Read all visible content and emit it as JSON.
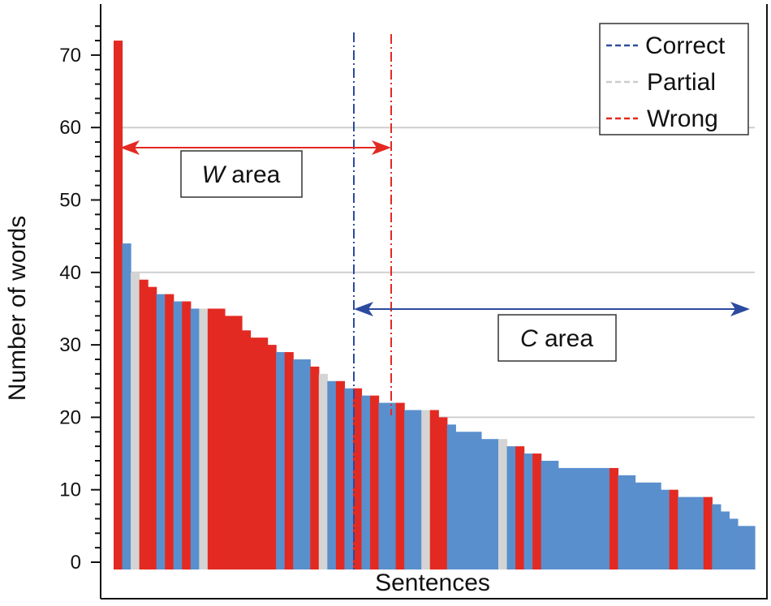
{
  "chart_data": {
    "type": "bar",
    "xlabel": "Sentences",
    "ylabel": "Number of words",
    "ylim": [
      0,
      75
    ],
    "yticks": [
      "0",
      "10",
      "20",
      "30",
      "40",
      "50",
      "60",
      "70"
    ],
    "grid_y": [
      20,
      40,
      60
    ],
    "legend": {
      "placement": "top-right",
      "items": [
        {
          "label": "Correct",
          "color": "#2f4f9a"
        },
        {
          "label": "Partial",
          "color": "#cccccc"
        },
        {
          "label": "Wrong",
          "color": "#e02a20"
        }
      ]
    },
    "colors": {
      "correct": "#5a8fcd",
      "partial": "#d4d4d4",
      "wrong": "#e32a22"
    },
    "annotations": {
      "w_area": {
        "italic": "W",
        "text": " area",
        "color": "#e32a22"
      },
      "c_area": {
        "italic": "C",
        "text": " area",
        "color": "#2c4a9e"
      }
    },
    "sentences": [
      {
        "words": 72,
        "class": "wrong"
      },
      {
        "words": 44,
        "class": "correct"
      },
      {
        "words": 40,
        "class": "partial"
      },
      {
        "words": 39,
        "class": "wrong"
      },
      {
        "words": 38,
        "class": "wrong"
      },
      {
        "words": 37,
        "class": "correct"
      },
      {
        "words": 37,
        "class": "wrong"
      },
      {
        "words": 36,
        "class": "correct"
      },
      {
        "words": 36,
        "class": "wrong"
      },
      {
        "words": 35,
        "class": "correct"
      },
      {
        "words": 35,
        "class": "partial"
      },
      {
        "words": 35,
        "class": "wrong"
      },
      {
        "words": 35,
        "class": "wrong"
      },
      {
        "words": 34,
        "class": "wrong"
      },
      {
        "words": 34,
        "class": "wrong"
      },
      {
        "words": 32,
        "class": "wrong"
      },
      {
        "words": 31,
        "class": "wrong"
      },
      {
        "words": 31,
        "class": "wrong"
      },
      {
        "words": 30,
        "class": "wrong"
      },
      {
        "words": 29,
        "class": "correct"
      },
      {
        "words": 29,
        "class": "wrong"
      },
      {
        "words": 28,
        "class": "correct"
      },
      {
        "words": 28,
        "class": "correct"
      },
      {
        "words": 27,
        "class": "wrong"
      },
      {
        "words": 26,
        "class": "partial"
      },
      {
        "words": 25,
        "class": "correct"
      },
      {
        "words": 25,
        "class": "wrong"
      },
      {
        "words": 24,
        "class": "correct"
      },
      {
        "words": 24,
        "class": "wrong"
      },
      {
        "words": 23,
        "class": "correct"
      },
      {
        "words": 23,
        "class": "wrong"
      },
      {
        "words": 22,
        "class": "correct"
      },
      {
        "words": 22,
        "class": "correct"
      },
      {
        "words": 22,
        "class": "wrong"
      },
      {
        "words": 21,
        "class": "correct"
      },
      {
        "words": 21,
        "class": "correct"
      },
      {
        "words": 21,
        "class": "partial"
      },
      {
        "words": 21,
        "class": "wrong"
      },
      {
        "words": 20,
        "class": "wrong"
      },
      {
        "words": 19,
        "class": "correct"
      },
      {
        "words": 18,
        "class": "correct"
      },
      {
        "words": 18,
        "class": "correct"
      },
      {
        "words": 18,
        "class": "correct"
      },
      {
        "words": 17,
        "class": "correct"
      },
      {
        "words": 17,
        "class": "correct"
      },
      {
        "words": 17,
        "class": "partial"
      },
      {
        "words": 16,
        "class": "correct"
      },
      {
        "words": 16,
        "class": "wrong"
      },
      {
        "words": 15,
        "class": "correct"
      },
      {
        "words": 15,
        "class": "wrong"
      },
      {
        "words": 14,
        "class": "correct"
      },
      {
        "words": 14,
        "class": "correct"
      },
      {
        "words": 13,
        "class": "correct"
      },
      {
        "words": 13,
        "class": "correct"
      },
      {
        "words": 13,
        "class": "correct"
      },
      {
        "words": 13,
        "class": "correct"
      },
      {
        "words": 13,
        "class": "correct"
      },
      {
        "words": 13,
        "class": "correct"
      },
      {
        "words": 13,
        "class": "wrong"
      },
      {
        "words": 12,
        "class": "correct"
      },
      {
        "words": 12,
        "class": "correct"
      },
      {
        "words": 11,
        "class": "correct"
      },
      {
        "words": 11,
        "class": "correct"
      },
      {
        "words": 11,
        "class": "correct"
      },
      {
        "words": 10,
        "class": "correct"
      },
      {
        "words": 10,
        "class": "wrong"
      },
      {
        "words": 9,
        "class": "correct"
      },
      {
        "words": 9,
        "class": "correct"
      },
      {
        "words": 9,
        "class": "correct"
      },
      {
        "words": 9,
        "class": "wrong"
      },
      {
        "words": 8,
        "class": "correct"
      },
      {
        "words": 7,
        "class": "correct"
      },
      {
        "words": 6,
        "class": "correct"
      },
      {
        "words": 5,
        "class": "correct"
      },
      {
        "words": 5,
        "class": "correct"
      }
    ],
    "sentence_count": 75
  }
}
